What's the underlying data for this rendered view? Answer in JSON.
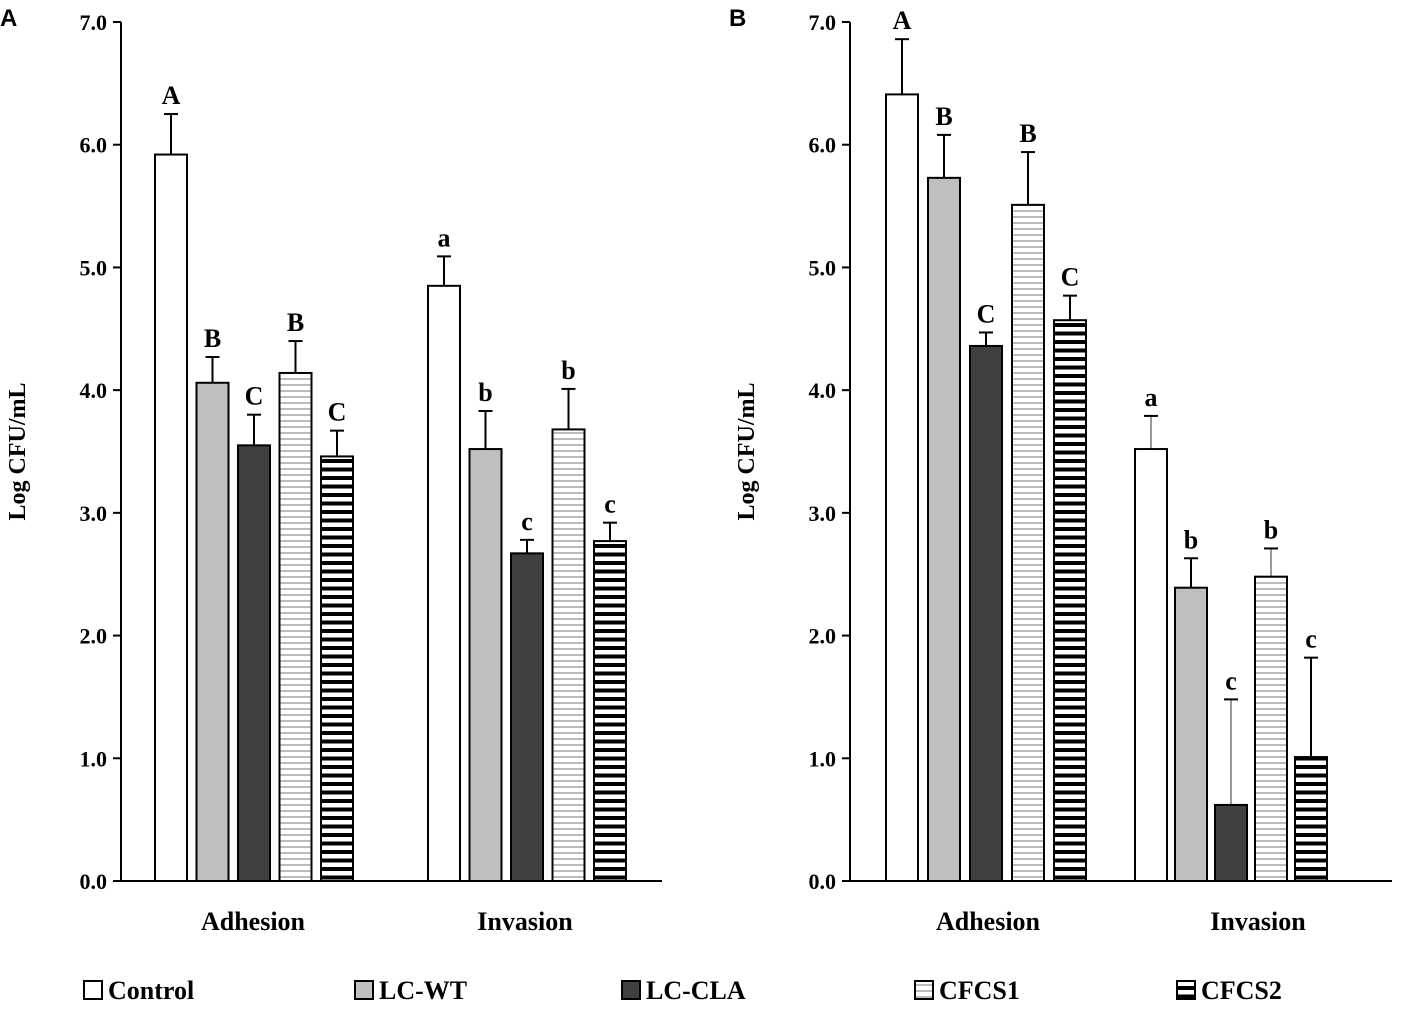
{
  "chart_data": [
    {
      "type": "bar",
      "panel_label": "A",
      "ylabel": "Log CFU/mL",
      "ylim": [
        0,
        7
      ],
      "yticks": [
        "0.0",
        "1.0",
        "2.0",
        "3.0",
        "4.0",
        "5.0",
        "6.0",
        "7.0"
      ],
      "categories": [
        "Adhesion",
        "Invasion"
      ],
      "series": [
        {
          "name": "Control",
          "values": [
            5.92,
            4.85
          ],
          "err_top": [
            6.25,
            5.09
          ],
          "letters": [
            "A",
            "a"
          ]
        },
        {
          "name": "LC-WT",
          "values": [
            4.06,
            3.52
          ],
          "err_top": [
            4.27,
            3.83
          ],
          "letters": [
            "B",
            "b"
          ]
        },
        {
          "name": "LC-CLA",
          "values": [
            3.55,
            2.67
          ],
          "err_top": [
            3.8,
            2.78
          ],
          "letters": [
            "C",
            "c"
          ]
        },
        {
          "name": "CFCS1",
          "values": [
            4.14,
            3.68
          ],
          "err_top": [
            4.4,
            4.01
          ],
          "letters": [
            "B",
            "b"
          ]
        },
        {
          "name": "CFCS2",
          "values": [
            3.46,
            2.77
          ],
          "err_top": [
            3.67,
            2.92
          ],
          "letters": [
            "C",
            "c"
          ]
        }
      ]
    },
    {
      "type": "bar",
      "panel_label": "B",
      "ylabel": "Log CFU/mL",
      "ylim": [
        0,
        7
      ],
      "yticks": [
        "0.0",
        "1.0",
        "2.0",
        "3.0",
        "4.0",
        "5.0",
        "6.0",
        "7.0"
      ],
      "categories": [
        "Adhesion",
        "Invasion"
      ],
      "series": [
        {
          "name": "Control",
          "values": [
            6.41,
            3.52
          ],
          "err_top": [
            6.86,
            3.79
          ],
          "letters": [
            "A",
            "a"
          ]
        },
        {
          "name": "LC-WT",
          "values": [
            5.73,
            2.39
          ],
          "err_top": [
            6.08,
            2.63
          ],
          "letters": [
            "B",
            "b"
          ]
        },
        {
          "name": "LC-CLA",
          "values": [
            4.36,
            0.62
          ],
          "err_top": [
            4.47,
            1.48
          ],
          "letters": [
            "C",
            "c"
          ]
        },
        {
          "name": "CFCS1",
          "values": [
            5.51,
            2.48
          ],
          "err_top": [
            5.94,
            2.71
          ],
          "letters": [
            "B",
            "b"
          ]
        },
        {
          "name": "CFCS2",
          "values": [
            4.57,
            1.01
          ],
          "err_top": [
            4.77,
            1.82
          ],
          "letters": [
            "C",
            "c"
          ]
        }
      ]
    }
  ],
  "legend": {
    "placement": "bottom",
    "items": [
      "Control",
      "LC-WT",
      "LC-CLA",
      "CFCS1",
      "CFCS2"
    ]
  },
  "fills": {
    "Control": "#ffffff",
    "LC-WT": "#bfbfbf",
    "LC-CLA": "#404040",
    "CFCS1": "pattern-thin-gray-stripes",
    "CFCS2": "pattern-thick-black-stripes"
  }
}
